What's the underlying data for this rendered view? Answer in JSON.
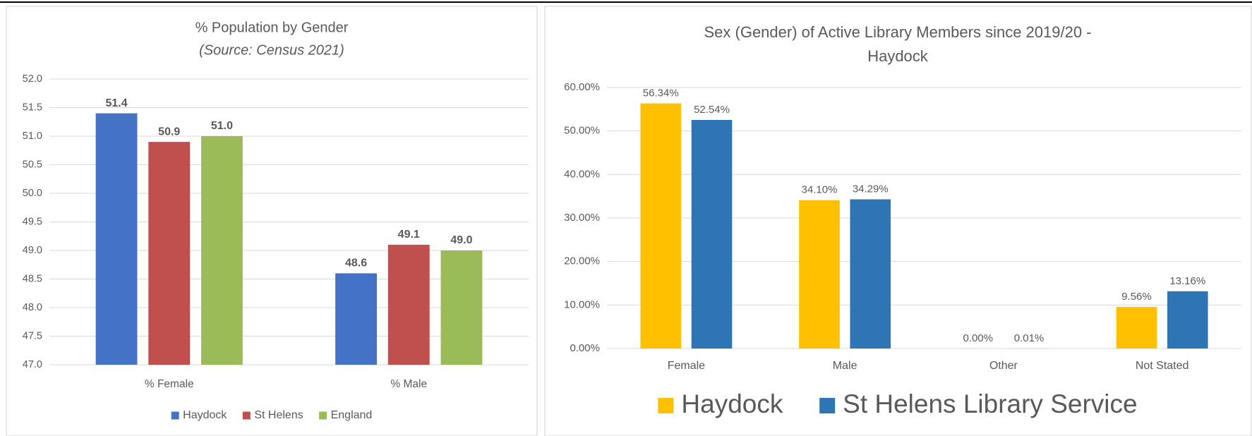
{
  "chart_data": [
    {
      "type": "bar",
      "title": "% Population by Gender",
      "subtitle": "(Source: Census 2021)",
      "categories": [
        "% Female",
        "% Male"
      ],
      "series": [
        {
          "name": "Haydock",
          "color": "#4472c4",
          "values": [
            51.4,
            48.6
          ]
        },
        {
          "name": "St Helens",
          "color": "#c0504d",
          "values": [
            50.9,
            49.1
          ]
        },
        {
          "name": "England",
          "color": "#9bbb59",
          "values": [
            51.0,
            49.0
          ]
        }
      ],
      "ylim": [
        47.0,
        52.0
      ],
      "yticks": [
        {
          "value": 47,
          "label": "47.0"
        },
        47.5,
        {
          "value": 48,
          "label": "48.0"
        },
        48.5,
        {
          "value": 49,
          "label": "49.0"
        },
        49.5,
        {
          "value": 50,
          "label": "50.0"
        },
        50.5,
        {
          "value": 51,
          "label": "51.0"
        },
        51.5,
        {
          "value": 52,
          "label": "52.0"
        }
      ],
      "grid": true,
      "legend": "bottom"
    },
    {
      "type": "bar",
      "title": [
        "Sex (Gender) of Active Library Members since 2019/20 -",
        "Haydock"
      ],
      "categories": [
        "Female",
        "Male",
        "Other",
        "Not Stated"
      ],
      "series": [
        {
          "name": "Haydock",
          "color": "#ffc000",
          "values": [
            56.34,
            34.1,
            0.0,
            9.56
          ],
          "value_labels": [
            "56.34%",
            "34.10%",
            "0.00%",
            "9.56%"
          ]
        },
        {
          "name": "St Helens Library Service",
          "color": "#2e75b6",
          "values": [
            52.54,
            34.29,
            0.01,
            13.16
          ],
          "value_labels": [
            "52.54%",
            "34.29%",
            "0.01%",
            "13.16%"
          ]
        }
      ],
      "ylim": [
        0,
        60
      ],
      "yticks": [
        {
          "value": 0,
          "label": "0.00%"
        },
        {
          "value": 10,
          "label": "10.00%"
        },
        {
          "value": 20,
          "label": "20.00%"
        },
        {
          "value": 30,
          "label": "30.00%"
        },
        {
          "value": 40,
          "label": "40.00%"
        },
        {
          "value": 50,
          "label": "50.00%"
        },
        {
          "value": 60,
          "label": "60.00%"
        }
      ],
      "grid": true,
      "legend": "bottom"
    }
  ]
}
